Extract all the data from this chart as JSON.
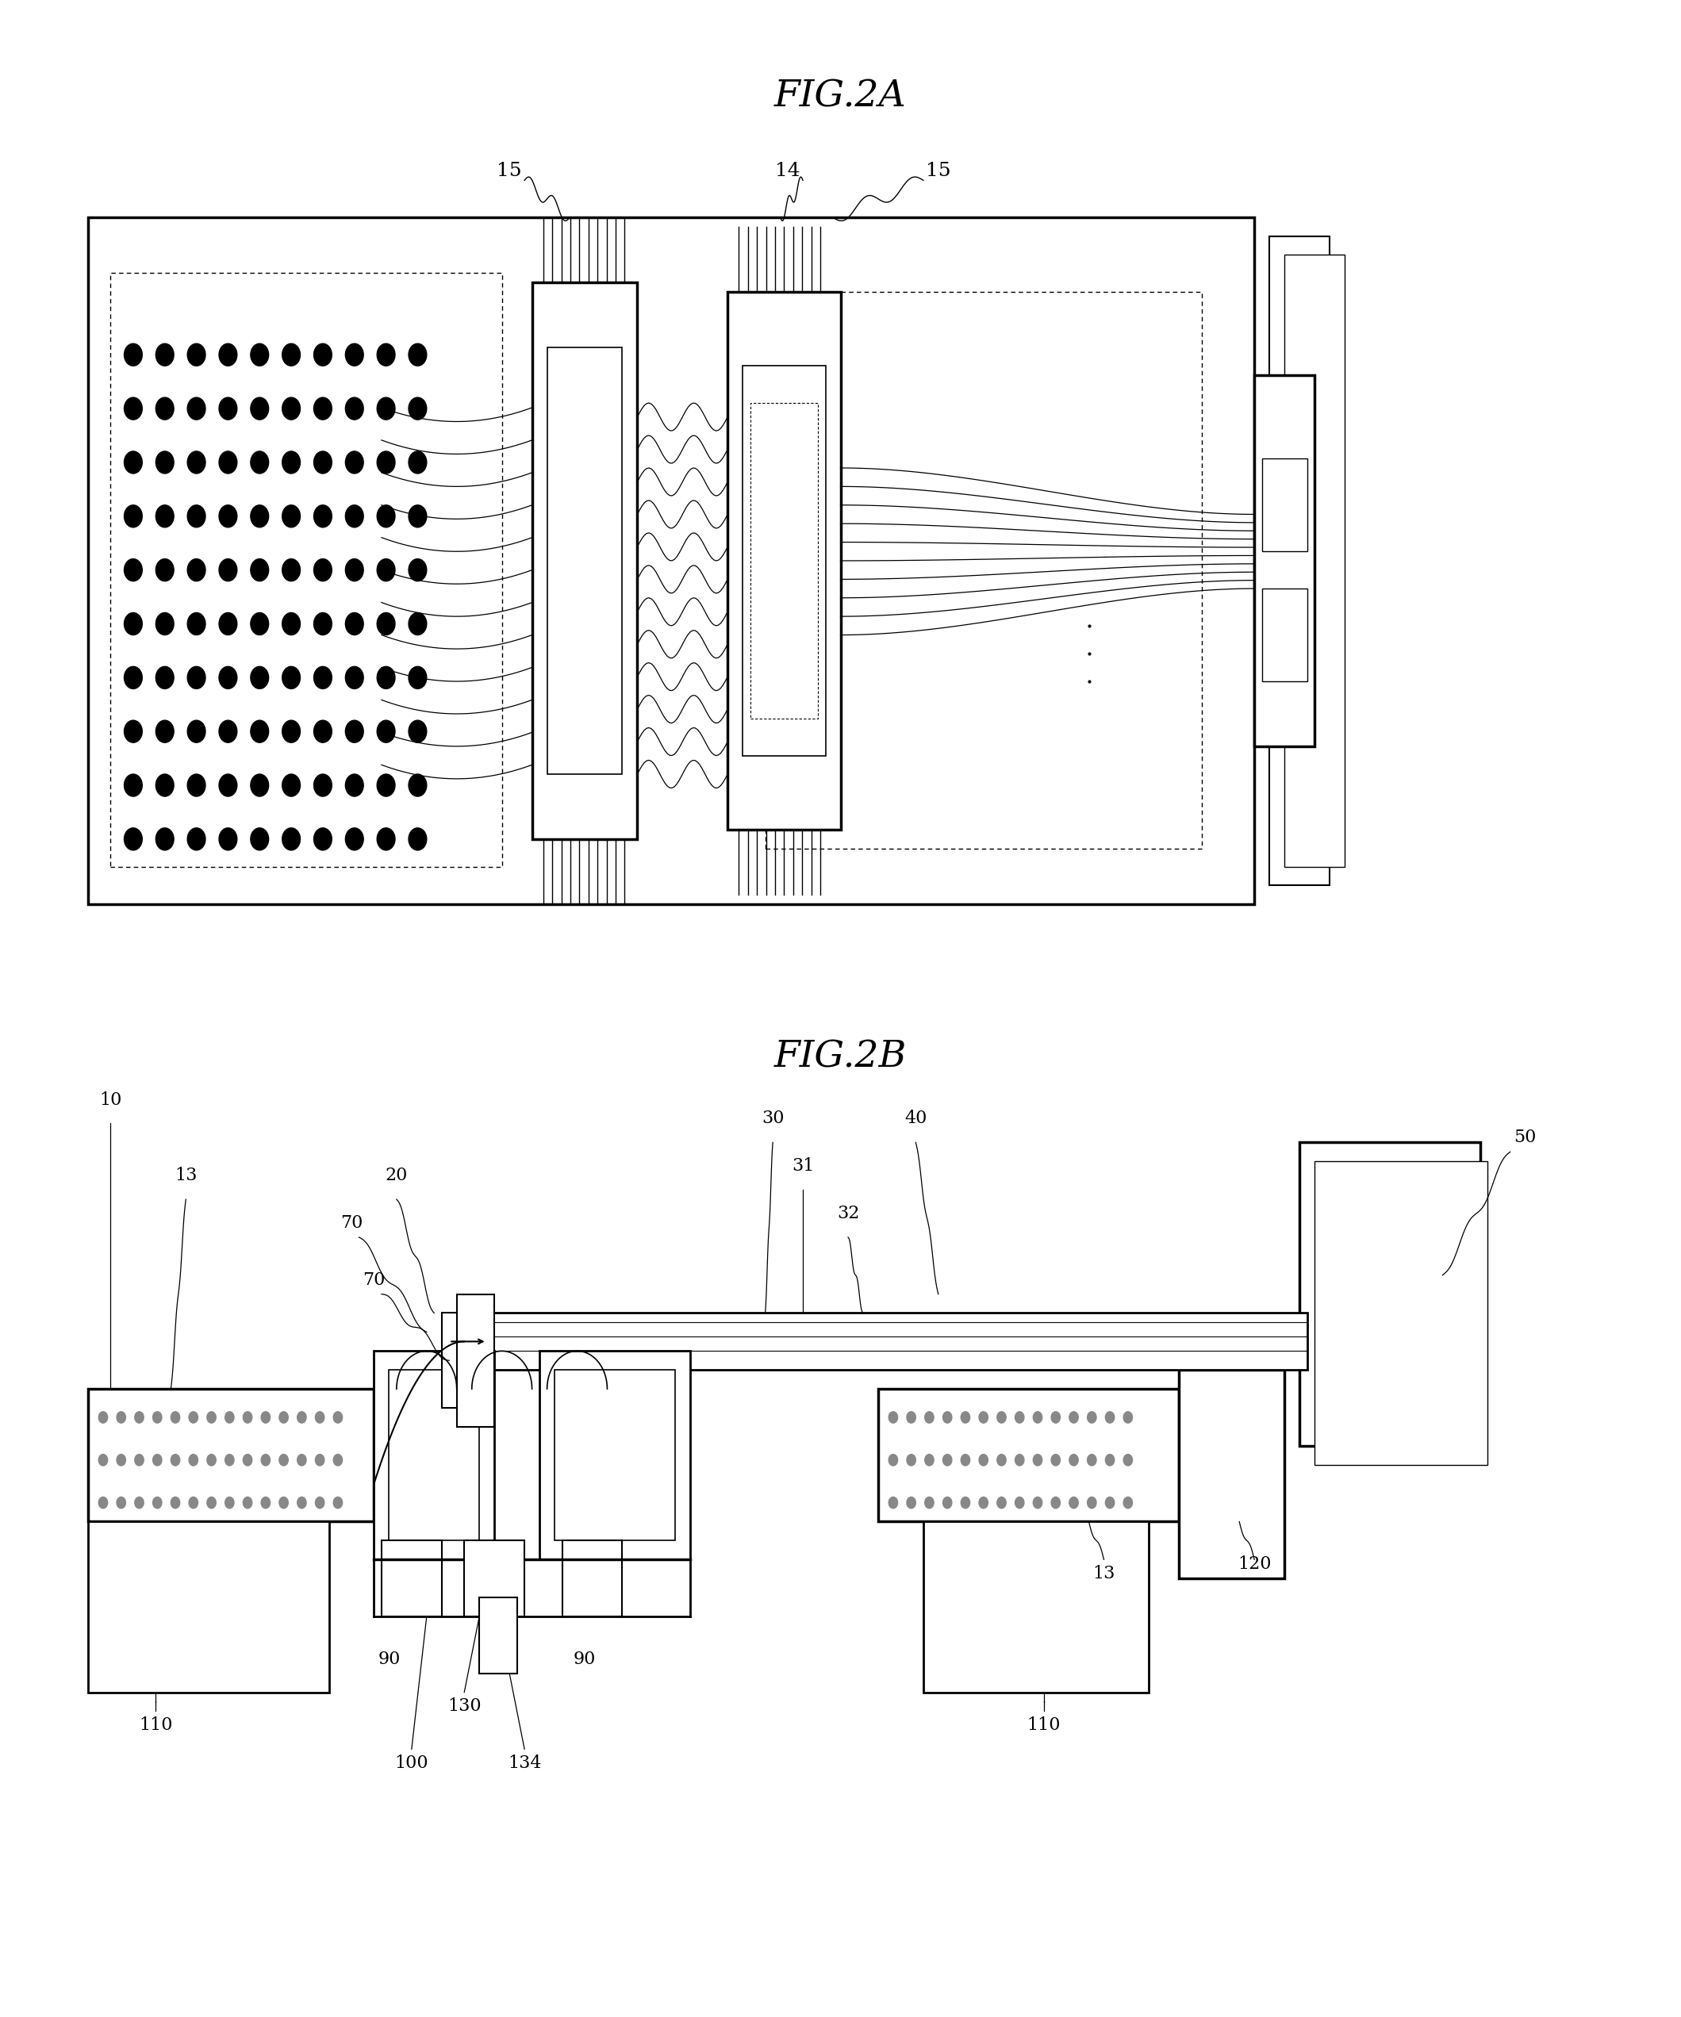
{
  "fig2a_title": "FIG.2A",
  "fig2b_title": "FIG.2B",
  "bg": "#ffffff",
  "lc": "#000000"
}
